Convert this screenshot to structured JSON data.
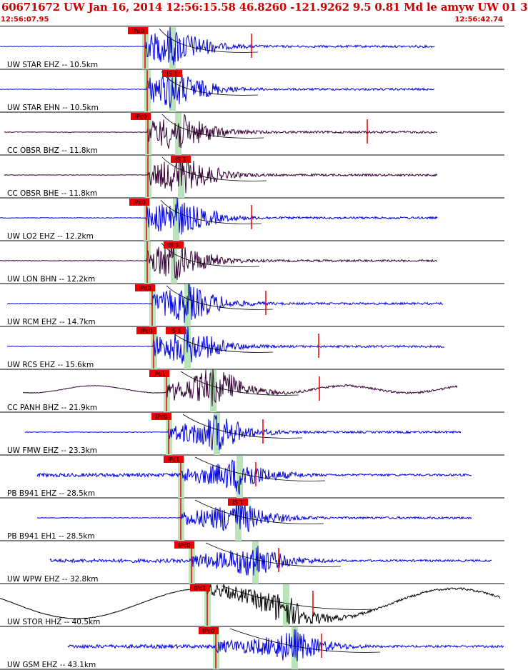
{
  "header": {
    "title": "60671672 UW Jan 16, 2014 12:56:15.58   46.8260 -121.9262  9.5 0.81 Md le amyw UW 01   3",
    "time_start": "12:56:07.95",
    "time_end": "12:56:42.74"
  },
  "colors": {
    "blue_trace": "#0000dd",
    "dark_trace": "#330033",
    "black_trace": "#000000",
    "pick": "#ee0000",
    "window": "#b9e3b9"
  },
  "traces": [
    {
      "label": "UW STAR EHZ -- 10.5km",
      "pick": "IPd0",
      "color": "blue_trace",
      "wave": "flat"
    },
    {
      "label": "UW STAR EHN -- 10.5km",
      "pick": "IS 1",
      "color": "blue_trace",
      "wave": "flat"
    },
    {
      "label": "CC OBSR BHZ -- 11.8km",
      "pick": "IPc0",
      "color": "dark_trace",
      "wave": "flat"
    },
    {
      "label": "CC OBSR BHE -- 11.8km",
      "pick": "IS 1",
      "color": "dark_trace",
      "wave": "flat"
    },
    {
      "label": "UW LO2 EHZ -- 12.2km",
      "pick": "IPd0",
      "color": "blue_trace",
      "wave": "flat"
    },
    {
      "label": "UW LON BHN -- 12.2km",
      "pick": "IS 1",
      "color": "dark_trace",
      "wave": "flat"
    },
    {
      "label": "UW RCM EHZ -- 14.7km",
      "pick": "IPd0",
      "color": "blue_trace",
      "wave": "flat"
    },
    {
      "label": "UW RCS EHZ -- 15.6km",
      "pick": "IPc0",
      "pick2": "IS 1",
      "color": "blue_trace",
      "wave": "flat"
    },
    {
      "label": "CC PANH BHZ -- 21.9km",
      "pick": "IPd1",
      "color": "dark_trace",
      "wave": "slow"
    },
    {
      "label": "UW FMW EHZ -- 23.3km",
      "pick": "IPc0",
      "color": "blue_trace",
      "wave": "flat"
    },
    {
      "label": "PB B941 EHZ -- 28.5km",
      "pick": "IPc1",
      "color": "blue_trace",
      "wave": "noisy"
    },
    {
      "label": "PB B941 EH1 -- 28.5km",
      "pick": "IS 1",
      "color": "blue_trace",
      "wave": "flat"
    },
    {
      "label": "UW WPW EHZ -- 32.8km",
      "pick": "IPc0",
      "color": "blue_trace",
      "wave": "noisy"
    },
    {
      "label": "UW STOR HHZ -- 40.5km",
      "pick": "IPc1",
      "color": "black_trace",
      "wave": "big"
    },
    {
      "label": "UW GSM EHZ -- 43.1km",
      "pick": "IPc0",
      "color": "blue_trace",
      "wave": "noisy"
    }
  ]
}
